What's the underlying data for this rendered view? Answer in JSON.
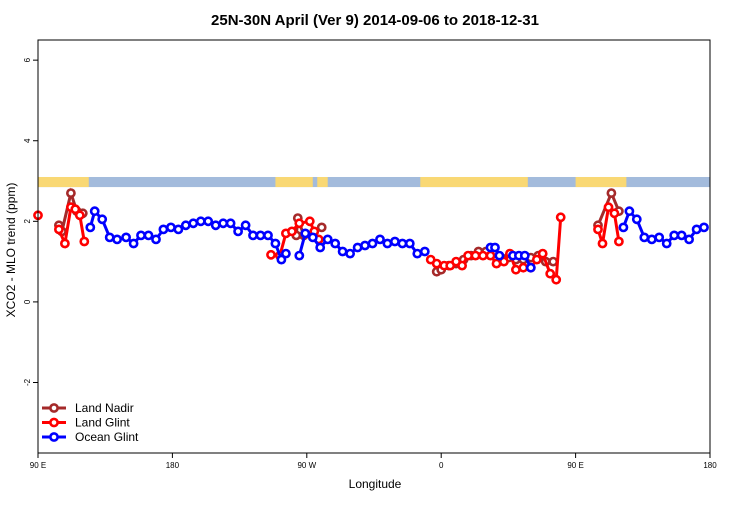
{
  "chart_data": {
    "type": "line",
    "title": "25N-30N April (Ver 9)   2014-09-06 to 2018-12-31",
    "xlabel": "Longitude",
    "ylabel": "XCO2 - MLO trend (ppm)",
    "xlim": [
      0,
      450
    ],
    "ylim": [
      -3.75,
      6.5
    ],
    "x_ticks": [
      {
        "value": 0,
        "label": "90 E"
      },
      {
        "value": 90,
        "label": "180"
      },
      {
        "value": 180,
        "label": "90 W"
      },
      {
        "value": 270,
        "label": "0"
      },
      {
        "value": 360,
        "label": "90 E"
      },
      {
        "value": 450,
        "label": "180"
      }
    ],
    "y_ticks": [
      {
        "value": -2,
        "label": "-2"
      },
      {
        "value": 0,
        "label": "0"
      },
      {
        "value": 2,
        "label": "2"
      },
      {
        "value": 4,
        "label": "4"
      },
      {
        "value": 6,
        "label": "6"
      }
    ],
    "grid": false,
    "legend_position": "bottom-left",
    "land_mask": {
      "y_range": [
        2.85,
        3.1
      ],
      "ocean_color": "#a3bbdc",
      "land_color": "#f9d874",
      "land_intervals": [
        [
          0,
          34
        ],
        [
          159,
          184
        ],
        [
          187,
          194
        ],
        [
          256,
          328
        ],
        [
          360,
          394
        ]
      ]
    },
    "series": [
      {
        "name": "Land Nadir",
        "color": "#a52a2a",
        "segments": [
          [
            [
              14,
              1.9
            ],
            [
              16,
              1.75
            ],
            [
              22,
              2.7
            ],
            [
              26,
              2.25
            ],
            [
              30,
              2.2
            ]
          ],
          [
            [
              173,
              1.65
            ],
            [
              174,
              2.08
            ],
            [
              178,
              1.65
            ],
            [
              190,
              1.85
            ]
          ],
          [
            [
              267,
              0.75
            ],
            [
              270,
              0.8
            ],
            [
              275,
              0.9
            ],
            [
              280,
              0.95
            ],
            [
              285,
              1.05
            ],
            [
              290,
              1.15
            ],
            [
              295,
              1.25
            ],
            [
              300,
              1.25
            ],
            [
              305,
              1.2
            ],
            [
              310,
              1.1
            ],
            [
              315,
              1.1
            ],
            [
              320,
              1.05
            ],
            [
              325,
              1.05
            ],
            [
              330,
              1.1
            ],
            [
              335,
              1.15
            ],
            [
              340,
              1.0
            ],
            [
              345,
              1.0
            ]
          ],
          [
            [
              375,
              1.9
            ],
            [
              384,
              2.7
            ],
            [
              389,
              2.25
            ]
          ]
        ]
      },
      {
        "name": "Land Glint",
        "color": "#ff0000",
        "segments": [
          [
            [
              0,
              2.15
            ]
          ],
          [
            [
              14,
              1.8
            ],
            [
              18,
              1.45
            ],
            [
              22,
              2.35
            ],
            [
              25,
              2.3
            ],
            [
              28,
              2.15
            ],
            [
              31,
              1.5
            ]
          ],
          [
            [
              156,
              1.17
            ],
            [
              162,
              1.15
            ],
            [
              166,
              1.7
            ],
            [
              170,
              1.75
            ],
            [
              175,
              1.95
            ],
            [
              182,
              2.0
            ],
            [
              185,
              1.75
            ],
            [
              188,
              1.55
            ]
          ],
          [
            [
              263,
              1.05
            ],
            [
              267,
              0.95
            ],
            [
              272,
              0.9
            ],
            [
              276,
              0.9
            ],
            [
              280,
              1.0
            ],
            [
              284,
              0.9
            ],
            [
              288,
              1.15
            ],
            [
              293,
              1.15
            ],
            [
              298,
              1.15
            ],
            [
              303,
              1.15
            ],
            [
              307,
              0.95
            ],
            [
              312,
              1.0
            ],
            [
              316,
              1.2
            ],
            [
              320,
              0.8
            ],
            [
              325,
              0.85
            ],
            [
              330,
              0.85
            ],
            [
              334,
              1.05
            ],
            [
              338,
              1.2
            ],
            [
              343,
              0.7
            ],
            [
              347,
              0.55
            ],
            [
              350,
              2.1
            ]
          ],
          [
            [
              375,
              1.8
            ],
            [
              378,
              1.45
            ],
            [
              382,
              2.35
            ],
            [
              386,
              2.2
            ],
            [
              389,
              1.5
            ]
          ]
        ]
      },
      {
        "name": "Ocean Glint",
        "color": "#0000ff",
        "segments": [
          [
            [
              35,
              1.85
            ],
            [
              38,
              2.25
            ],
            [
              43,
              2.05
            ],
            [
              48,
              1.6
            ],
            [
              53,
              1.55
            ],
            [
              59,
              1.6
            ],
            [
              64,
              1.45
            ],
            [
              69,
              1.65
            ],
            [
              74,
              1.65
            ],
            [
              79,
              1.55
            ],
            [
              84,
              1.8
            ],
            [
              89,
              1.85
            ],
            [
              94,
              1.8
            ],
            [
              99,
              1.9
            ],
            [
              104,
              1.95
            ],
            [
              109,
              2.0
            ],
            [
              114,
              2.0
            ],
            [
              119,
              1.9
            ],
            [
              124,
              1.95
            ],
            [
              129,
              1.95
            ],
            [
              134,
              1.75
            ],
            [
              139,
              1.9
            ],
            [
              144,
              1.65
            ],
            [
              149,
              1.65
            ],
            [
              154,
              1.65
            ],
            [
              159,
              1.45
            ],
            [
              163,
              1.05
            ],
            [
              166,
              1.2
            ]
          ],
          [
            [
              175,
              1.15
            ],
            [
              179,
              1.7
            ],
            [
              184,
              1.6
            ],
            [
              189,
              1.35
            ],
            [
              194,
              1.55
            ],
            [
              199,
              1.45
            ],
            [
              204,
              1.25
            ],
            [
              209,
              1.2
            ],
            [
              214,
              1.35
            ],
            [
              219,
              1.4
            ],
            [
              224,
              1.45
            ],
            [
              229,
              1.55
            ],
            [
              234,
              1.45
            ],
            [
              239,
              1.5
            ],
            [
              244,
              1.45
            ],
            [
              249,
              1.45
            ],
            [
              254,
              1.2
            ],
            [
              259,
              1.25
            ]
          ],
          [
            [
              303,
              1.35
            ],
            [
              306,
              1.35
            ],
            [
              309,
              1.15
            ]
          ],
          [
            [
              318,
              1.15
            ],
            [
              322,
              1.15
            ],
            [
              326,
              1.15
            ],
            [
              330,
              0.85
            ]
          ],
          [
            [
              392,
              1.85
            ],
            [
              396,
              2.25
            ],
            [
              401,
              2.05
            ],
            [
              406,
              1.6
            ],
            [
              411,
              1.55
            ],
            [
              416,
              1.6
            ],
            [
              421,
              1.45
            ],
            [
              426,
              1.65
            ],
            [
              431,
              1.65
            ],
            [
              436,
              1.55
            ],
            [
              441,
              1.8
            ],
            [
              446,
              1.85
            ]
          ]
        ]
      }
    ]
  }
}
